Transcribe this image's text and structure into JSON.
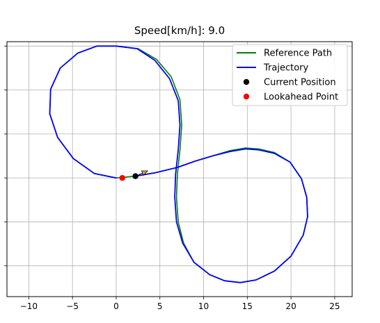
{
  "chart_data": {
    "type": "line",
    "title": "Speed[km/h]: 9.0",
    "xlabel": "",
    "ylabel": "",
    "xlim": [
      -12.5,
      27.0
    ],
    "ylim": [
      -13.5,
      15.5
    ],
    "xticks": [
      -10,
      -5,
      0,
      5,
      10,
      15,
      20,
      25
    ],
    "xtick_labels": [
      "−10",
      "−5",
      "0",
      "5",
      "10",
      "15",
      "20",
      "25"
    ],
    "yticks": [
      -10,
      -5,
      0,
      5,
      10,
      15
    ],
    "grid": true,
    "legend_position": "top-right",
    "series": [
      {
        "name": "Reference Path",
        "color": "#008000",
        "points": [
          [
            0,
            0
          ],
          [
            -2.5,
            0.5
          ],
          [
            -4.9,
            2.2
          ],
          [
            -6.7,
            4.6
          ],
          [
            -7.6,
            7.3
          ],
          [
            -7.5,
            10.1
          ],
          [
            -6.4,
            12.5
          ],
          [
            -4.4,
            14.2
          ],
          [
            -2.2,
            15.0
          ],
          [
            0,
            15.0
          ],
          [
            2.5,
            14.7
          ],
          [
            4.6,
            13.5
          ],
          [
            6.3,
            11.5
          ],
          [
            7.3,
            8.9
          ],
          [
            7.5,
            6.0
          ],
          [
            7.3,
            3.2
          ],
          [
            7.0,
            0.4
          ],
          [
            6.9,
            -2.2
          ],
          [
            7.1,
            -5.0
          ],
          [
            7.7,
            -7.4
          ],
          [
            8.9,
            -9.6
          ],
          [
            10.7,
            -11.0
          ],
          [
            12.4,
            -11.7
          ],
          [
            14.2,
            -11.9
          ],
          [
            16.0,
            -11.6
          ],
          [
            18.1,
            -10.6
          ],
          [
            20.0,
            -8.9
          ],
          [
            21.4,
            -6.5
          ],
          [
            21.9,
            -4.4
          ],
          [
            21.8,
            -2.2
          ],
          [
            21.2,
            -0.1
          ],
          [
            19.9,
            1.8
          ],
          [
            18.1,
            2.9
          ],
          [
            16.3,
            3.3
          ],
          [
            14.8,
            3.4
          ],
          [
            13.0,
            3.1
          ],
          [
            11.0,
            2.5
          ],
          [
            9.0,
            1.9
          ],
          [
            7.0,
            1.2
          ],
          [
            4.5,
            0.6
          ],
          [
            2.2,
            0.2
          ],
          [
            0,
            0
          ]
        ]
      },
      {
        "name": "Trajectory",
        "color": "#0000ff",
        "points": [
          [
            0,
            0
          ],
          [
            -2.5,
            0.5
          ],
          [
            -4.9,
            2.2
          ],
          [
            -6.7,
            4.6
          ],
          [
            -7.6,
            7.3
          ],
          [
            -7.5,
            10.1
          ],
          [
            -6.4,
            12.5
          ],
          [
            -4.4,
            14.2
          ],
          [
            -2.2,
            15.0
          ],
          [
            0,
            15.0
          ],
          [
            2.4,
            14.7
          ],
          [
            4.4,
            13.4
          ],
          [
            6.1,
            11.3
          ],
          [
            7.1,
            8.8
          ],
          [
            7.3,
            6.0
          ],
          [
            7.1,
            3.2
          ],
          [
            6.8,
            0.4
          ],
          [
            6.7,
            -2.2
          ],
          [
            6.9,
            -5.0
          ],
          [
            7.6,
            -7.4
          ],
          [
            8.9,
            -9.6
          ],
          [
            10.7,
            -11.0
          ],
          [
            12.4,
            -11.7
          ],
          [
            14.2,
            -11.9
          ],
          [
            16.0,
            -11.6
          ],
          [
            18.1,
            -10.6
          ],
          [
            20.0,
            -8.9
          ],
          [
            21.4,
            -6.5
          ],
          [
            21.9,
            -4.4
          ],
          [
            21.8,
            -2.2
          ],
          [
            21.2,
            -0.1
          ],
          [
            19.9,
            1.8
          ],
          [
            18.1,
            2.8
          ],
          [
            16.3,
            3.2
          ],
          [
            14.8,
            3.3
          ],
          [
            13.0,
            3.0
          ],
          [
            11.0,
            2.5
          ],
          [
            9.0,
            1.9
          ],
          [
            7.0,
            1.2
          ],
          [
            4.5,
            0.6
          ],
          [
            2.2,
            0.2
          ]
        ]
      }
    ],
    "markers": [
      {
        "name": "Current Position",
        "color": "#000000",
        "x": 2.2,
        "y": 0.2
      },
      {
        "name": "Lookahead Point",
        "color": "#ff0000",
        "x": 0.7,
        "y": 0.0
      }
    ],
    "heading_arrow": {
      "from": [
        2.2,
        0.2
      ],
      "to": [
        3.6,
        0.8
      ]
    },
    "legend": [
      {
        "label": "Reference Path",
        "kind": "line",
        "color": "#008000"
      },
      {
        "label": "Trajectory",
        "kind": "line",
        "color": "#0000ff"
      },
      {
        "label": "Current Position",
        "kind": "marker",
        "color": "#000000"
      },
      {
        "label": "Lookahead Point",
        "kind": "marker",
        "color": "#ff0000"
      }
    ]
  }
}
